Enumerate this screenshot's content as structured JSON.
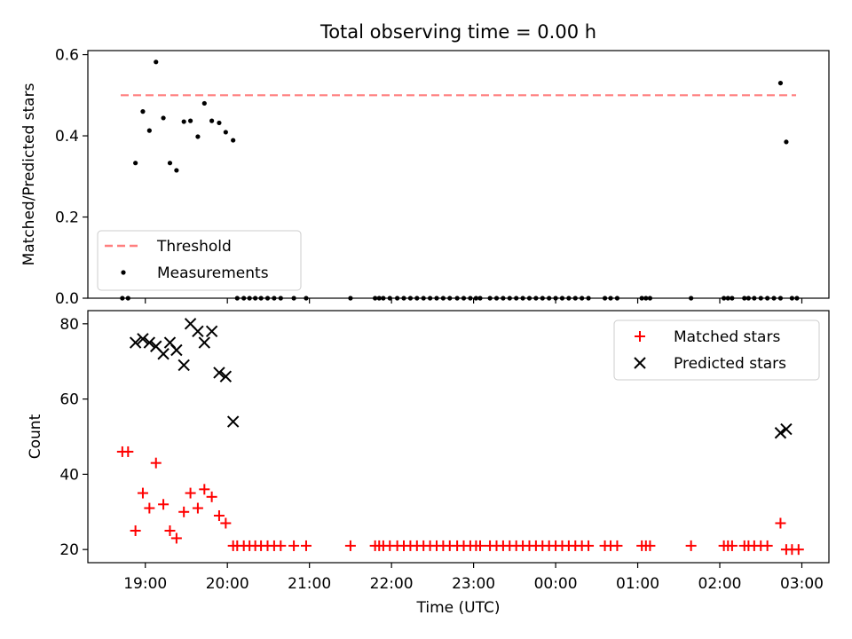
{
  "figure": {
    "title": "Total observing time = 0.00 h",
    "xlabel": "Time (UTC)",
    "xtick_labels": [
      "19:00",
      "20:00",
      "21:00",
      "22:00",
      "23:00",
      "00:00",
      "01:00",
      "02:00",
      "03:00"
    ]
  },
  "chart_data": [
    {
      "type": "scatter",
      "title": "Total observing time = 0.00 h",
      "ylabel": "Matched/Predicted stars",
      "xlabel": "",
      "x_unit": "hours since 19:00 UTC",
      "ylim": [
        0,
        0.61
      ],
      "xlim": [
        -0.7,
        8.33
      ],
      "yticks": [
        "0.0",
        "0.2",
        "0.4",
        "0.6"
      ],
      "legend": {
        "placement": "lower-left",
        "entries": [
          "Threshold",
          "Measurements"
        ]
      },
      "threshold": {
        "name": "Threshold",
        "value": 0.5,
        "x_range": [
          -0.3,
          7.93
        ],
        "color": "#ff7f7f",
        "style": "dashed"
      },
      "series": [
        {
          "name": "Measurements",
          "color": "#000000",
          "marker": "dot",
          "points": [
            [
              -0.28,
              0
            ],
            [
              -0.21,
              0
            ],
            [
              -0.12,
              0.333
            ],
            [
              -0.03,
              0.46
            ],
            [
              0.05,
              0.413
            ],
            [
              0.13,
              0.582
            ],
            [
              0.22,
              0.444
            ],
            [
              0.3,
              0.333
            ],
            [
              0.38,
              0.315
            ],
            [
              0.47,
              0.435
            ],
            [
              0.55,
              0.437
            ],
            [
              0.64,
              0.398
            ],
            [
              0.72,
              0.48
            ],
            [
              0.81,
              0.437
            ],
            [
              0.9,
              0.432
            ],
            [
              0.98,
              0.409
            ],
            [
              1.07,
              0.389
            ],
            [
              1.12,
              0
            ],
            [
              1.2,
              0
            ],
            [
              1.27,
              0
            ],
            [
              1.34,
              0
            ],
            [
              1.41,
              0
            ],
            [
              1.49,
              0
            ],
            [
              1.57,
              0
            ],
            [
              1.65,
              0
            ],
            [
              1.81,
              0
            ],
            [
              1.96,
              0
            ],
            [
              2.5,
              0
            ],
            [
              2.8,
              0
            ],
            [
              2.85,
              0
            ],
            [
              2.9,
              0
            ],
            [
              2.98,
              0
            ],
            [
              3.07,
              0
            ],
            [
              3.15,
              0
            ],
            [
              3.23,
              0
            ],
            [
              3.31,
              0
            ],
            [
              3.39,
              0
            ],
            [
              3.47,
              0
            ],
            [
              3.55,
              0
            ],
            [
              3.63,
              0
            ],
            [
              3.71,
              0
            ],
            [
              3.8,
              0
            ],
            [
              3.88,
              0
            ],
            [
              3.96,
              0
            ],
            [
              4.03,
              0
            ],
            [
              4.08,
              0
            ],
            [
              4.2,
              0
            ],
            [
              4.28,
              0
            ],
            [
              4.36,
              0
            ],
            [
              4.44,
              0
            ],
            [
              4.52,
              0
            ],
            [
              4.6,
              0
            ],
            [
              4.68,
              0
            ],
            [
              4.76,
              0
            ],
            [
              4.84,
              0
            ],
            [
              4.92,
              0
            ],
            [
              5.0,
              0
            ],
            [
              5.08,
              0
            ],
            [
              5.16,
              0
            ],
            [
              5.24,
              0
            ],
            [
              5.32,
              0
            ],
            [
              5.4,
              0
            ],
            [
              5.6,
              0
            ],
            [
              5.67,
              0
            ],
            [
              5.75,
              0
            ],
            [
              6.05,
              0
            ],
            [
              6.1,
              0
            ],
            [
              6.15,
              0
            ],
            [
              6.65,
              0
            ],
            [
              7.05,
              0
            ],
            [
              7.1,
              0
            ],
            [
              7.15,
              0
            ],
            [
              7.3,
              0
            ],
            [
              7.35,
              0
            ],
            [
              7.42,
              0
            ],
            [
              7.5,
              0
            ],
            [
              7.58,
              0
            ],
            [
              7.66,
              0
            ],
            [
              7.74,
              0
            ],
            [
              7.74,
              0.53
            ],
            [
              7.81,
              0.385
            ],
            [
              7.88,
              0
            ],
            [
              7.94,
              0
            ]
          ]
        }
      ]
    },
    {
      "type": "scatter",
      "title": "",
      "ylabel": "Count",
      "xlabel": "Time (UTC)",
      "x_unit": "hours since 19:00 UTC",
      "ylim": [
        16.5,
        83.5
      ],
      "xlim": [
        -0.7,
        8.33
      ],
      "yticks": [
        "20",
        "40",
        "60",
        "80"
      ],
      "legend": {
        "placement": "upper-right",
        "entries": [
          "Matched stars",
          "Predicted stars"
        ]
      },
      "series": [
        {
          "name": "Matched stars",
          "color": "#ff0000",
          "marker": "plus",
          "points": [
            [
              -0.28,
              46
            ],
            [
              -0.21,
              46
            ],
            [
              -0.12,
              25
            ],
            [
              -0.03,
              35
            ],
            [
              0.05,
              31
            ],
            [
              0.13,
              43
            ],
            [
              0.22,
              32
            ],
            [
              0.3,
              25
            ],
            [
              0.38,
              23
            ],
            [
              0.47,
              30
            ],
            [
              0.55,
              35
            ],
            [
              0.64,
              31
            ],
            [
              0.72,
              36
            ],
            [
              0.81,
              34
            ],
            [
              0.9,
              29
            ],
            [
              0.98,
              27
            ],
            [
              1.07,
              21
            ],
            [
              1.12,
              21
            ],
            [
              1.2,
              21
            ],
            [
              1.27,
              21
            ],
            [
              1.34,
              21
            ],
            [
              1.41,
              21
            ],
            [
              1.49,
              21
            ],
            [
              1.57,
              21
            ],
            [
              1.65,
              21
            ],
            [
              1.81,
              21
            ],
            [
              1.96,
              21
            ],
            [
              2.5,
              21
            ],
            [
              2.8,
              21
            ],
            [
              2.85,
              21
            ],
            [
              2.9,
              21
            ],
            [
              2.98,
              21
            ],
            [
              3.07,
              21
            ],
            [
              3.15,
              21
            ],
            [
              3.23,
              21
            ],
            [
              3.31,
              21
            ],
            [
              3.39,
              21
            ],
            [
              3.47,
              21
            ],
            [
              3.55,
              21
            ],
            [
              3.63,
              21
            ],
            [
              3.71,
              21
            ],
            [
              3.8,
              21
            ],
            [
              3.88,
              21
            ],
            [
              3.96,
              21
            ],
            [
              4.03,
              21
            ],
            [
              4.08,
              21
            ],
            [
              4.2,
              21
            ],
            [
              4.28,
              21
            ],
            [
              4.36,
              21
            ],
            [
              4.44,
              21
            ],
            [
              4.52,
              21
            ],
            [
              4.6,
              21
            ],
            [
              4.68,
              21
            ],
            [
              4.76,
              21
            ],
            [
              4.84,
              21
            ],
            [
              4.92,
              21
            ],
            [
              5.0,
              21
            ],
            [
              5.08,
              21
            ],
            [
              5.16,
              21
            ],
            [
              5.24,
              21
            ],
            [
              5.32,
              21
            ],
            [
              5.4,
              21
            ],
            [
              5.6,
              21
            ],
            [
              5.67,
              21
            ],
            [
              5.75,
              21
            ],
            [
              6.05,
              21
            ],
            [
              6.1,
              21
            ],
            [
              6.15,
              21
            ],
            [
              6.65,
              21
            ],
            [
              7.05,
              21
            ],
            [
              7.1,
              21
            ],
            [
              7.15,
              21
            ],
            [
              7.3,
              21
            ],
            [
              7.35,
              21
            ],
            [
              7.42,
              21
            ],
            [
              7.5,
              21
            ],
            [
              7.58,
              21
            ],
            [
              7.74,
              27
            ],
            [
              7.81,
              20
            ],
            [
              7.88,
              20
            ],
            [
              7.96,
              20
            ]
          ]
        },
        {
          "name": "Predicted stars",
          "color": "#000000",
          "marker": "x",
          "points": [
            [
              -0.12,
              75
            ],
            [
              -0.03,
              76
            ],
            [
              0.05,
              75
            ],
            [
              0.13,
              74
            ],
            [
              0.22,
              72
            ],
            [
              0.3,
              75
            ],
            [
              0.38,
              73
            ],
            [
              0.47,
              69
            ],
            [
              0.55,
              80
            ],
            [
              0.64,
              78
            ],
            [
              0.72,
              75
            ],
            [
              0.81,
              78
            ],
            [
              0.9,
              67
            ],
            [
              0.98,
              66
            ],
            [
              1.07,
              54
            ],
            [
              7.74,
              51
            ],
            [
              7.81,
              52
            ]
          ]
        }
      ]
    }
  ]
}
